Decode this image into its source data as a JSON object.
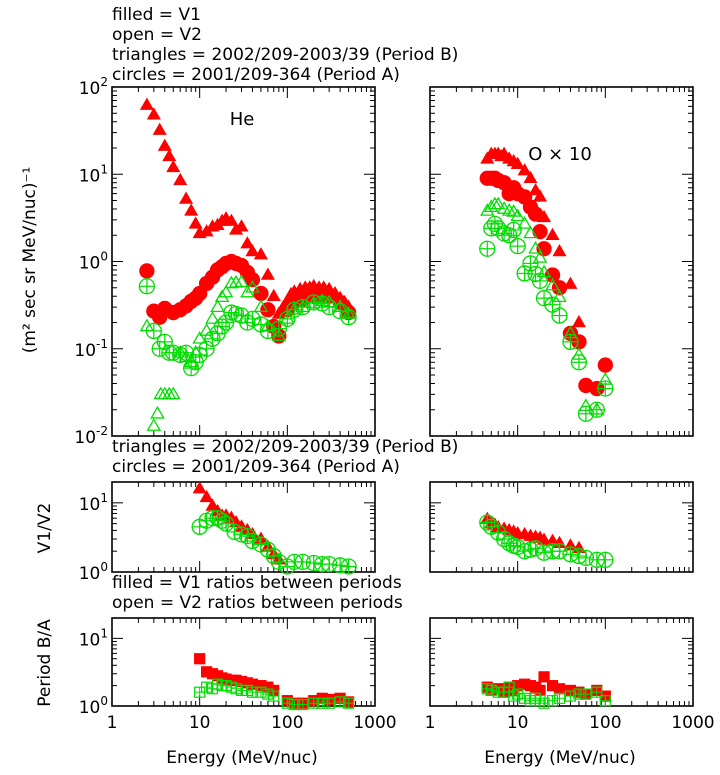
{
  "notes": {
    "top": [
      "filled = V1",
      "open = V2",
      "triangles = 2002/209-2003/39 (Period B)",
      "circles = 2001/209-364 (Period A)"
    ],
    "mid": [
      "triangles = 2002/209-2003/39 (Period B)",
      "circles = 2001/209-364 (Period A)"
    ],
    "low": [
      "filled = V1 ratios between periods",
      "open = V2 ratios between periods"
    ]
  },
  "labels": {
    "flux_y": "(m² sec sr MeV/nuc)⁻¹",
    "ratio_y": "V1/V2",
    "period_y": "Period B/A",
    "xlabel": "Energy (MeV/nuc)"
  },
  "colors": {
    "v1": "#ff0000",
    "v2": "#00dd00",
    "axis": "#000000"
  },
  "chart_data": [
    {
      "id": "flux-he",
      "type": "scatter",
      "panel_label": "He",
      "xscale": "log",
      "yscale": "log",
      "xlim": [
        1,
        1000
      ],
      "ylim": [
        0.01,
        100
      ],
      "yticks": [
        {
          "v": 0.01,
          "b": "10",
          "e": "-2"
        },
        {
          "v": 0.1,
          "b": "10",
          "e": "-1"
        },
        {
          "v": 1,
          "b": "10",
          "e": "0"
        },
        {
          "v": 10,
          "b": "10",
          "e": "1"
        },
        {
          "v": 100,
          "b": "10",
          "e": "2"
        }
      ],
      "series": [
        {
          "marker": "triangle",
          "fill": "filled",
          "color": "#ff0000",
          "x": [
            2.5,
            3,
            3.5,
            4,
            4.5,
            5,
            6,
            7,
            8,
            9,
            10,
            12,
            14,
            16,
            18,
            20,
            23,
            26,
            30,
            35,
            40,
            50,
            60,
            70,
            80,
            90,
            100,
            110,
            120,
            140,
            160,
            180,
            200,
            230,
            260,
            300,
            350,
            400,
            450,
            500
          ],
          "y": [
            62,
            48,
            32,
            21,
            16,
            12,
            8.5,
            5.2,
            3.8,
            2.7,
            2.1,
            2.2,
            2.5,
            2.6,
            2.9,
            3.1,
            2.9,
            2.3,
            2.5,
            1.6,
            1.3,
            1.2,
            0.7,
            0.4,
            0.25,
            0.3,
            0.35,
            0.42,
            0.45,
            0.48,
            0.5,
            0.5,
            0.52,
            0.5,
            0.5,
            0.48,
            0.43,
            0.38,
            0.34,
            0.3
          ]
        },
        {
          "marker": "circle",
          "fill": "filled",
          "color": "#ff0000",
          "x": [
            2.5,
            3,
            3.5,
            4,
            5,
            6,
            7,
            8,
            9,
            10,
            12,
            14,
            16,
            18,
            20,
            23,
            26,
            30,
            35,
            40,
            50,
            60,
            70,
            80,
            100,
            120,
            150,
            200,
            250,
            300,
            400,
            500
          ],
          "y": [
            0.78,
            0.27,
            0.23,
            0.29,
            0.26,
            0.28,
            0.31,
            0.35,
            0.38,
            0.43,
            0.56,
            0.66,
            0.8,
            0.87,
            0.95,
            1.0,
            0.95,
            0.9,
            0.75,
            0.62,
            0.43,
            0.28,
            0.18,
            0.14,
            0.28,
            0.34,
            0.37,
            0.4,
            0.41,
            0.4,
            0.34,
            0.26
          ]
        },
        {
          "marker": "triangle",
          "fill": "open",
          "color": "#00dd00",
          "x": [
            2.5,
            3,
            3.3,
            3.6,
            4,
            4.5,
            5,
            6,
            7,
            8,
            9,
            10,
            12,
            14,
            16,
            18,
            20,
            23,
            26,
            30,
            35,
            40,
            50,
            60,
            80,
            100,
            120,
            150,
            200,
            250,
            300,
            400,
            500
          ],
          "y": [
            0.18,
            0.013,
            0.018,
            0.03,
            0.03,
            0.03,
            0.03,
            0.09,
            0.08,
            0.07,
            0.09,
            0.13,
            0.16,
            0.22,
            0.3,
            0.39,
            0.44,
            0.56,
            0.57,
            0.58,
            0.44,
            0.5,
            0.3,
            0.18,
            0.14,
            0.22,
            0.28,
            0.3,
            0.33,
            0.35,
            0.34,
            0.3,
            0.25
          ]
        },
        {
          "marker": "circle",
          "fill": "open",
          "color": "#00dd00",
          "x": [
            2.5,
            3,
            3.5,
            4,
            4.5,
            5,
            6,
            7,
            8,
            9,
            10,
            12,
            14,
            16,
            18,
            20,
            23,
            26,
            30,
            35,
            40,
            50,
            60,
            80,
            100,
            120,
            150,
            200,
            250,
            300,
            400,
            500
          ],
          "y": [
            0.52,
            0.16,
            0.1,
            0.12,
            0.09,
            0.09,
            0.085,
            0.09,
            0.06,
            0.07,
            0.085,
            0.1,
            0.13,
            0.15,
            0.18,
            0.2,
            0.26,
            0.25,
            0.24,
            0.2,
            0.22,
            0.19,
            0.16,
            0.17,
            0.22,
            0.28,
            0.3,
            0.34,
            0.33,
            0.3,
            0.27,
            0.23
          ]
        }
      ]
    },
    {
      "id": "flux-o",
      "type": "scatter",
      "panel_label": "O × 10",
      "xscale": "log",
      "yscale": "log",
      "xlim": [
        1,
        1000
      ],
      "ylim": [
        0.01,
        100
      ],
      "yticks": [],
      "series": [
        {
          "marker": "triangle",
          "fill": "filled",
          "color": "#ff0000",
          "x": [
            4.5,
            5,
            5.5,
            6,
            6.5,
            7,
            8,
            9,
            10,
            12,
            14,
            16,
            18,
            20,
            25,
            30,
            40,
            50
          ],
          "y": [
            15,
            17,
            17,
            17,
            16,
            17,
            15,
            14,
            13,
            11,
            9,
            6.5,
            5.5,
            3.2,
            2,
            1.3,
            0.55,
            0.2
          ]
        },
        {
          "marker": "circle",
          "fill": "filled",
          "color": "#ff0000",
          "x": [
            4.5,
            5,
            5.5,
            6,
            7,
            8,
            9,
            10,
            12,
            14,
            16,
            18,
            20,
            25,
            30,
            40,
            50,
            60,
            80,
            100
          ],
          "y": [
            9,
            9,
            9,
            8.5,
            8,
            6,
            7,
            6,
            5.5,
            4.2,
            3.5,
            2.2,
            1.4,
            0.7,
            0.5,
            0.15,
            0.12,
            0.038,
            0.035,
            0.065
          ]
        },
        {
          "marker": "triangle",
          "fill": "open",
          "color": "#00dd00",
          "x": [
            4.5,
            5,
            5.5,
            6,
            7,
            8,
            9,
            10,
            12,
            14,
            16,
            18,
            20,
            25,
            30,
            40,
            50,
            60,
            80,
            100
          ],
          "y": [
            3.8,
            4.2,
            4.5,
            4.5,
            4.0,
            3.8,
            3.7,
            3.3,
            2.7,
            2.1,
            1.4,
            1.1,
            0.75,
            0.53,
            0.39,
            0.15,
            0.085,
            0.022,
            0.02,
            0.044
          ]
        },
        {
          "marker": "circle",
          "fill": "open",
          "color": "#00dd00",
          "x": [
            4.5,
            5,
            5.5,
            6,
            7,
            8,
            9,
            10,
            12,
            14,
            16,
            18,
            20,
            25,
            30,
            40,
            50,
            60,
            80,
            100
          ],
          "y": [
            1.4,
            2.4,
            2.7,
            2.4,
            2.1,
            2.0,
            2.3,
            1.5,
            0.73,
            0.95,
            0.72,
            0.6,
            0.38,
            0.32,
            0.24,
            0.12,
            0.07,
            0.018,
            0.02,
            0.035
          ]
        }
      ]
    },
    {
      "id": "ratio-he",
      "type": "scatter",
      "xscale": "log",
      "yscale": "log",
      "xlim": [
        1,
        1000
      ],
      "ylim": [
        1,
        20
      ],
      "yticks": [
        {
          "v": 1,
          "b": "10",
          "e": "0"
        },
        {
          "v": 10,
          "b": "10",
          "e": "1"
        }
      ],
      "series": [
        {
          "marker": "triangle",
          "fill": "filled",
          "color": "#ff0000",
          "x": [
            10,
            12,
            14,
            16,
            18,
            20,
            23,
            26,
            30,
            35,
            40,
            50,
            60,
            70,
            80
          ],
          "y": [
            16,
            12,
            9,
            7.5,
            6.5,
            6.5,
            6,
            5.2,
            4.5,
            4,
            3.5,
            3,
            2.3,
            1.8,
            1.5
          ]
        },
        {
          "marker": "circle",
          "fill": "open",
          "color": "#00dd00",
          "x": [
            10,
            12,
            14,
            16,
            18,
            20,
            25,
            30,
            35,
            40,
            50,
            60,
            70,
            80,
            100,
            120,
            150,
            200,
            250,
            300,
            400,
            500
          ],
          "y": [
            4.5,
            5.5,
            6,
            6,
            5.5,
            5,
            3.8,
            3.5,
            3.3,
            2.8,
            2.5,
            2.1,
            1.7,
            1.4,
            1.2,
            1.4,
            1.4,
            1.35,
            1.3,
            1.3,
            1.25,
            1.2
          ]
        }
      ]
    },
    {
      "id": "ratio-o",
      "type": "scatter",
      "xscale": "log",
      "yscale": "log",
      "xlim": [
        1,
        1000
      ],
      "ylim": [
        1,
        20
      ],
      "yticks": [],
      "series": [
        {
          "marker": "triangle",
          "fill": "filled",
          "color": "#ff0000",
          "x": [
            4.5,
            5,
            5.5,
            6,
            7,
            8,
            9,
            10,
            12,
            14,
            16,
            18,
            20,
            25,
            30,
            40,
            50
          ],
          "y": [
            5.8,
            5,
            4.8,
            4.4,
            4.2,
            4,
            3.8,
            3.6,
            3.5,
            3.3,
            3.2,
            3.1,
            2.9,
            2.8,
            2.6,
            2.4,
            2.2
          ]
        },
        {
          "marker": "circle",
          "fill": "open",
          "color": "#00dd00",
          "x": [
            4.5,
            5,
            6,
            7,
            8,
            9,
            10,
            12,
            14,
            16,
            20,
            25,
            30,
            40,
            50,
            60,
            80,
            100
          ],
          "y": [
            5.2,
            4.5,
            3.7,
            3,
            2.6,
            2.4,
            2.3,
            2,
            2.1,
            2.2,
            1.9,
            2,
            2,
            1.8,
            1.7,
            1.6,
            1.5,
            1.5
          ]
        }
      ]
    },
    {
      "id": "period-he",
      "type": "scatter",
      "xscale": "log",
      "yscale": "log",
      "xlim": [
        1,
        1000
      ],
      "ylim": [
        1,
        20
      ],
      "yticks": [
        {
          "v": 1,
          "b": "10",
          "e": "0"
        },
        {
          "v": 10,
          "b": "10",
          "e": "1"
        }
      ],
      "series": [
        {
          "marker": "square",
          "fill": "filled",
          "color": "#ff0000",
          "x": [
            10,
            12,
            14,
            16,
            18,
            20,
            23,
            26,
            30,
            35,
            40,
            50,
            60,
            70,
            100,
            120,
            150,
            200,
            250,
            300,
            400,
            500
          ],
          "y": [
            5,
            3.2,
            3,
            2.8,
            2.6,
            2.5,
            2.4,
            2.4,
            2.3,
            2.2,
            2.1,
            2,
            1.9,
            1.7,
            1.2,
            1.1,
            1.1,
            1.2,
            1.3,
            1.25,
            1.3,
            1.15
          ]
        },
        {
          "marker": "square",
          "fill": "open",
          "color": "#00dd00",
          "x": [
            10,
            12,
            14,
            16,
            18,
            20,
            23,
            26,
            30,
            35,
            40,
            50,
            60,
            70,
            100,
            120,
            150,
            200,
            250,
            300,
            400,
            500
          ],
          "y": [
            1.6,
            1.9,
            1.8,
            2.1,
            2.0,
            2.0,
            1.9,
            1.8,
            1.7,
            1.7,
            1.6,
            1.6,
            1.5,
            1.4,
            1.1,
            1.05,
            1.05,
            1.1,
            1.1,
            1.1,
            1.15,
            1.1
          ]
        }
      ]
    },
    {
      "id": "period-o",
      "type": "scatter",
      "xscale": "log",
      "yscale": "log",
      "xlim": [
        1,
        1000
      ],
      "ylim": [
        1,
        20
      ],
      "yticks": [],
      "series": [
        {
          "marker": "square",
          "fill": "filled",
          "color": "#ff0000",
          "x": [
            4.5,
            5,
            6,
            7,
            8,
            9,
            10,
            12,
            14,
            16,
            18,
            20,
            25,
            30,
            40,
            50,
            60,
            80,
            100
          ],
          "y": [
            1.9,
            1.7,
            1.8,
            1.6,
            1.9,
            1.7,
            2.0,
            2.1,
            2.0,
            1.9,
            1.7,
            2.7,
            2.0,
            1.8,
            1.7,
            1.6,
            1.5,
            1.7,
            1.4
          ]
        },
        {
          "marker": "square",
          "fill": "open",
          "color": "#00dd00",
          "x": [
            4.5,
            5,
            6,
            7,
            8,
            9,
            10,
            12,
            14,
            16,
            18,
            20,
            25,
            30,
            40,
            50,
            60,
            80,
            100
          ],
          "y": [
            1.8,
            1.7,
            1.6,
            1.6,
            1.9,
            1.4,
            1.5,
            1.3,
            1.2,
            1.3,
            1.2,
            1.1,
            1.2,
            1.3,
            1.4,
            1.5,
            1.5,
            1.6,
            1.2
          ]
        }
      ]
    }
  ],
  "xticks": [
    {
      "v": 1,
      "t": "1"
    },
    {
      "v": 10,
      "t": "10"
    },
    {
      "v": 100,
      "t": "100"
    },
    {
      "v": 1000,
      "t": "1000"
    }
  ]
}
